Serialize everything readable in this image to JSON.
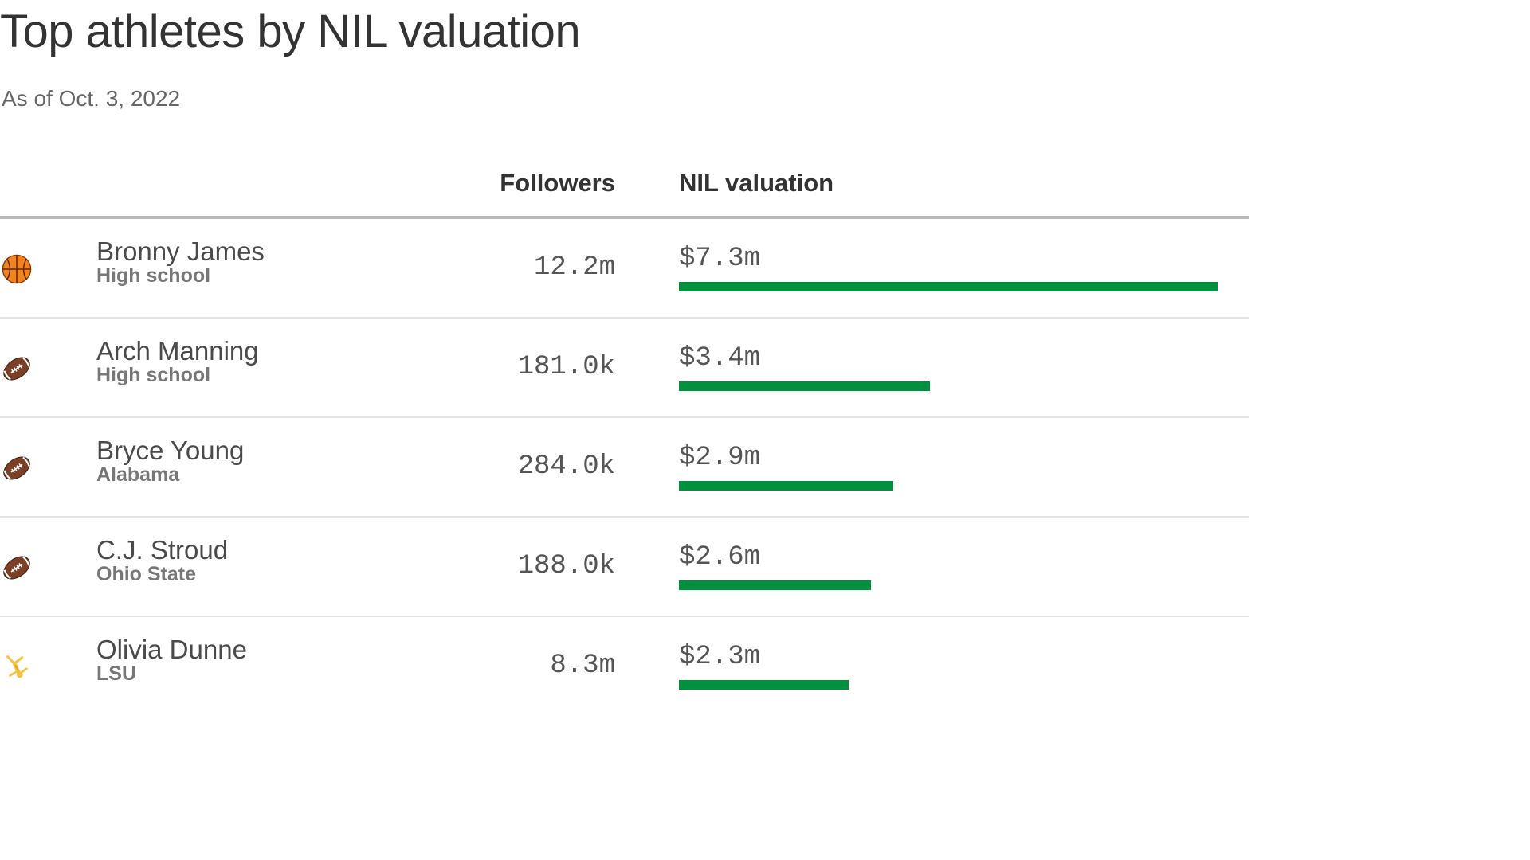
{
  "colors": {
    "bar": "#00913f",
    "text": "#333333",
    "muted": "#777777"
  },
  "chart_data": {
    "type": "bar",
    "title": "Top athletes by NIL valuation",
    "subtitle": "As of Oct. 3, 2022",
    "columns": {
      "followers": "Followers",
      "valuation": "NIL valuation"
    },
    "xlim": [
      0,
      7.3
    ],
    "rows": [
      {
        "sport_icon": "basketball-icon",
        "name": "Bronny James",
        "school": "High school",
        "followers": "12.2m",
        "valuation_label": "$7.3m",
        "valuation": 7.3
      },
      {
        "sport_icon": "football-icon",
        "name": "Arch Manning",
        "school": "High school",
        "followers": "181.0k",
        "valuation_label": "$3.4m",
        "valuation": 3.4
      },
      {
        "sport_icon": "football-icon",
        "name": "Bryce Young",
        "school": "Alabama",
        "followers": "284.0k",
        "valuation_label": "$2.9m",
        "valuation": 2.9
      },
      {
        "sport_icon": "football-icon",
        "name": "C.J. Stroud",
        "school": "Ohio State",
        "followers": "188.0k",
        "valuation_label": "$2.6m",
        "valuation": 2.6
      },
      {
        "sport_icon": "gymnast-icon",
        "name": "Olivia Dunne",
        "school": "LSU",
        "followers": "8.3m",
        "valuation_label": "$2.3m",
        "valuation": 2.3
      }
    ]
  }
}
